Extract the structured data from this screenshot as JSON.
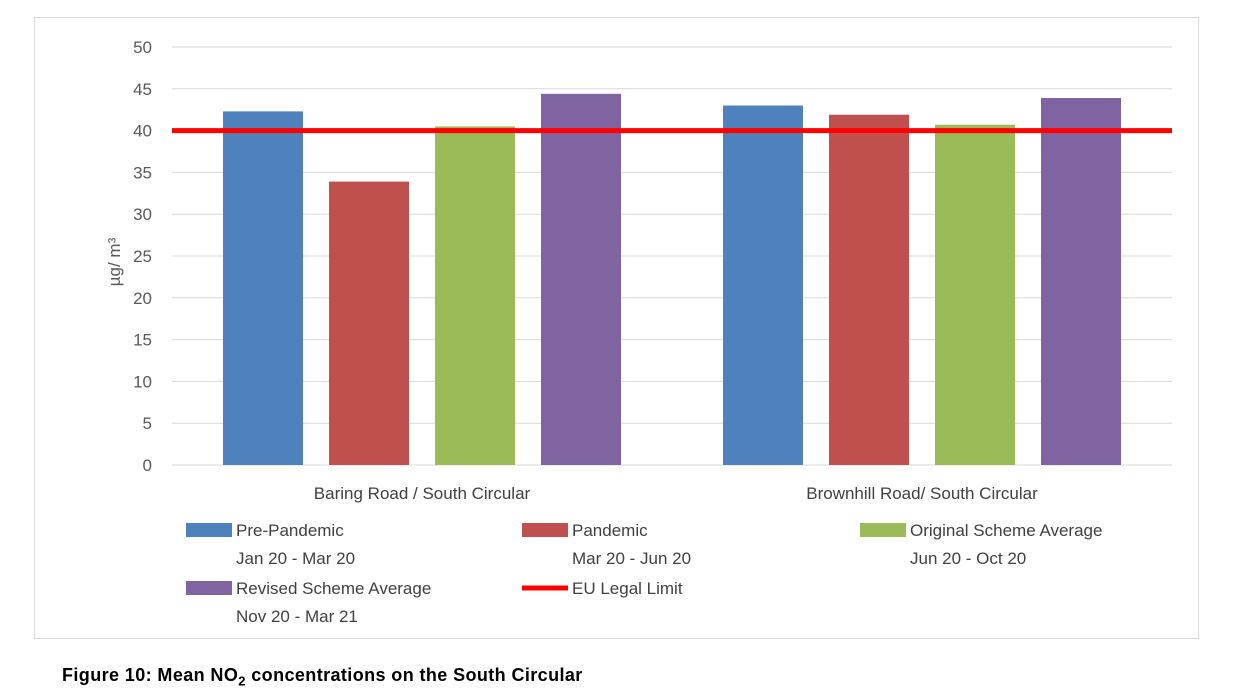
{
  "chart_data": {
    "type": "bar",
    "ylabel": "µg/ m³",
    "ylim": [
      0,
      50
    ],
    "yticks": [
      0,
      5,
      10,
      15,
      20,
      25,
      30,
      35,
      40,
      45,
      50
    ],
    "categories": [
      "Baring Road / South Circular",
      "Brownhill Road/ South Circular"
    ],
    "grid": true,
    "legend_position": "bottom",
    "series": [
      {
        "name": "Pre-Pandemic",
        "subname": "Jan 20 - Mar 20",
        "color": "#4f81bd",
        "values": [
          42.3,
          43.0
        ]
      },
      {
        "name": "Pandemic",
        "subname": "Mar 20 - Jun 20",
        "color": "#c0504d",
        "values": [
          33.9,
          41.9
        ]
      },
      {
        "name": "Original Scheme Average",
        "subname": "Jun 20 - Oct 20",
        "color": "#9bbb59",
        "values": [
          40.5,
          40.7
        ]
      },
      {
        "name": "Revised Scheme Average",
        "subname": "Nov 20 - Mar 21",
        "color": "#8064a2",
        "values": [
          44.4,
          43.9
        ]
      }
    ],
    "reference_line": {
      "name": "EU Legal Limit",
      "value": 40,
      "color": "#ff0000"
    }
  },
  "caption": {
    "prefix": "Figure 10: Mean NO",
    "subscript": "2",
    "suffix": " concentrations on the South Circular"
  }
}
